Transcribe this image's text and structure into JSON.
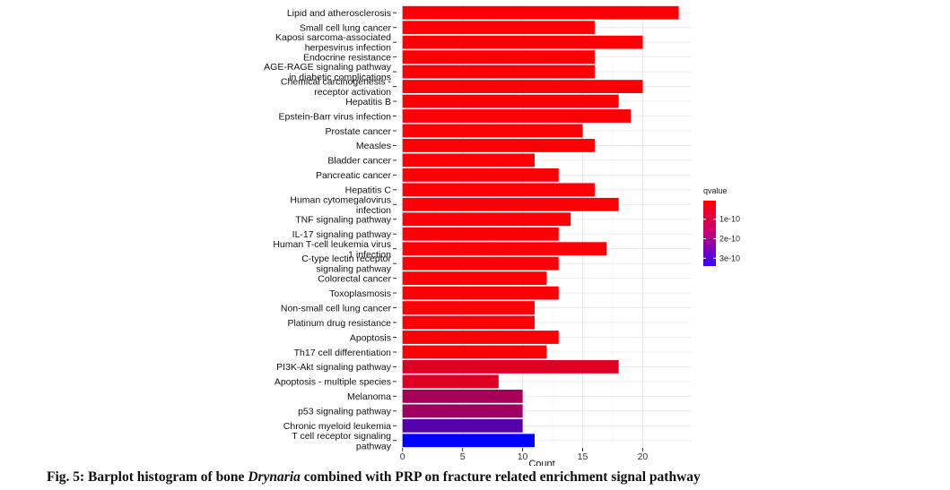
{
  "chart_data": {
    "type": "bar",
    "orientation": "horizontal",
    "xlabel": "Count",
    "xlim": [
      -0.5,
      24
    ],
    "xticks": [
      0,
      5,
      10,
      15,
      20
    ],
    "grid": true,
    "legend": {
      "title": "qvalue",
      "placement": "right",
      "labels": [
        "1e-10",
        "2e-10",
        "3e-10"
      ],
      "tick_values": [
        1e-10,
        2e-10,
        3e-10
      ],
      "range": [
        5e-12,
        3.4e-10
      ],
      "colors": {
        "low": "#ff0000",
        "high": "#0000ff"
      }
    },
    "categories": [
      [
        "Lipid and atherosclerosis"
      ],
      [
        "Small cell lung cancer"
      ],
      [
        "Kaposi sarcoma-associated",
        "herpesvirus infection"
      ],
      [
        "Endocrine resistance"
      ],
      [
        "AGE-RAGE signaling pathway",
        "in diabetic complications"
      ],
      [
        "Chemical carcinogenesis -",
        "receptor activation"
      ],
      [
        "Hepatitis B"
      ],
      [
        "Epstein-Barr virus infection"
      ],
      [
        "Prostate cancer"
      ],
      [
        "Measles"
      ],
      [
        "Bladder cancer"
      ],
      [
        "Pancreatic cancer"
      ],
      [
        "Hepatitis C"
      ],
      [
        "Human cytomegalovirus",
        "infection"
      ],
      [
        "TNF signaling pathway"
      ],
      [
        "IL-17 signaling pathway"
      ],
      [
        "Human T-cell leukemia virus",
        "1 infection"
      ],
      [
        "C-type lectin receptor",
        "signaling pathway"
      ],
      [
        "Colorectal cancer"
      ],
      [
        "Toxoplasmosis"
      ],
      [
        "Non-small cell lung cancer"
      ],
      [
        "Platinum drug resistance"
      ],
      [
        "Apoptosis"
      ],
      [
        "Th17 cell differentiation"
      ],
      [
        "PI3K-Akt signaling pathway"
      ],
      [
        "Apoptosis - multiple species"
      ],
      [
        "Melanoma"
      ],
      [
        "p53 signaling pathway"
      ],
      [
        "Chronic myeloid leukemia"
      ],
      [
        "T cell receptor signaling",
        "pathway"
      ]
    ],
    "values": [
      23,
      16,
      20,
      16,
      16,
      20,
      18,
      19,
      15,
      16,
      11,
      13,
      16,
      18,
      14,
      13,
      17,
      13,
      12,
      13,
      11,
      11,
      13,
      12,
      18,
      8,
      10,
      10,
      10,
      11
    ],
    "qvalues": [
      1e-11,
      1e-11,
      1e-11,
      1e-11,
      1e-11,
      1e-11,
      1e-11,
      1e-11,
      1e-11,
      1e-11,
      1e-11,
      1e-11,
      1e-11,
      1e-11,
      1e-11,
      1e-11,
      1e-11,
      1e-11,
      1e-11,
      1e-11,
      1e-11,
      1e-11,
      1e-11,
      1e-11,
      5e-11,
      5e-11,
      1.2e-10,
      1.3e-10,
      2.3e-10,
      3.4e-10
    ]
  },
  "caption": {
    "prefix": "Fig. 5: Barplot histogram of bone ",
    "italic": "Drynaria",
    "suffix": " combined with PRP on fracture related enrichment signal pathway"
  }
}
